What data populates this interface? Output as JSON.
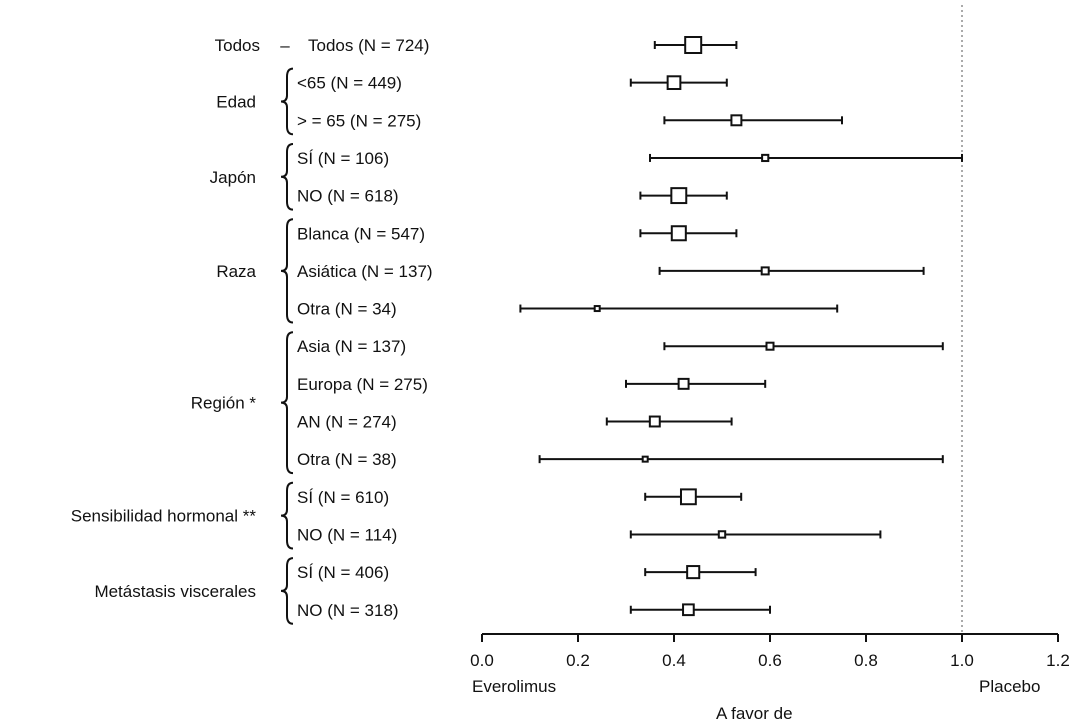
{
  "chart_data": {
    "type": "forest",
    "xlim": [
      0,
      1.2
    ],
    "xticks": [
      "0.0",
      "0.2",
      "0.4",
      "0.6",
      "0.8",
      "1.0",
      "1.2"
    ],
    "reference_line": 1.0,
    "xlabel_left": "Everolimus",
    "xlabel_right": "Placebo",
    "xlabel_center": "A favor de",
    "groups": [
      {
        "label": "Todos",
        "dash": "–",
        "rows": [
          {
            "label": "Todos (N = 724)",
            "est": 0.44,
            "lo": 0.36,
            "hi": 0.53
          }
        ]
      },
      {
        "label": "Edad",
        "rows": [
          {
            "label": "<65 (N = 449)",
            "est": 0.4,
            "lo": 0.31,
            "hi": 0.51
          },
          {
            "label": "> = 65 (N = 275)",
            "est": 0.53,
            "lo": 0.38,
            "hi": 0.75
          }
        ]
      },
      {
        "label": "Japón",
        "rows": [
          {
            "label": "SÍ (N = 106)",
            "est": 0.59,
            "lo": 0.35,
            "hi": 1.0
          },
          {
            "label": "NO (N = 618)",
            "est": 0.41,
            "lo": 0.33,
            "hi": 0.51
          }
        ]
      },
      {
        "label": "Raza",
        "rows": [
          {
            "label": "Blanca (N = 547)",
            "est": 0.41,
            "lo": 0.33,
            "hi": 0.53
          },
          {
            "label": "Asiática (N = 137)",
            "est": 0.59,
            "lo": 0.37,
            "hi": 0.92
          },
          {
            "label": "Otra (N = 34)",
            "est": 0.24,
            "lo": 0.08,
            "hi": 0.74
          }
        ]
      },
      {
        "label": "Región *",
        "rows": [
          {
            "label": "Asia (N = 137)",
            "est": 0.6,
            "lo": 0.38,
            "hi": 0.96
          },
          {
            "label": "Europa (N = 275)",
            "est": 0.42,
            "lo": 0.3,
            "hi": 0.59
          },
          {
            "label": "AN (N = 274)",
            "est": 0.36,
            "lo": 0.26,
            "hi": 0.52
          },
          {
            "label": "Otra (N = 38)",
            "est": 0.34,
            "lo": 0.12,
            "hi": 0.96
          }
        ]
      },
      {
        "label": "Sensibilidad hormonal **",
        "rows": [
          {
            "label": "SÍ (N = 610)",
            "est": 0.43,
            "lo": 0.34,
            "hi": 0.54
          },
          {
            "label": "NO (N = 114)",
            "est": 0.5,
            "lo": 0.31,
            "hi": 0.83
          }
        ]
      },
      {
        "label": "Metástasis viscerales",
        "rows": [
          {
            "label": "SÍ (N = 406)",
            "est": 0.44,
            "lo": 0.34,
            "hi": 0.57
          },
          {
            "label": "NO (N = 318)",
            "est": 0.43,
            "lo": 0.31,
            "hi": 0.6
          }
        ]
      }
    ]
  }
}
